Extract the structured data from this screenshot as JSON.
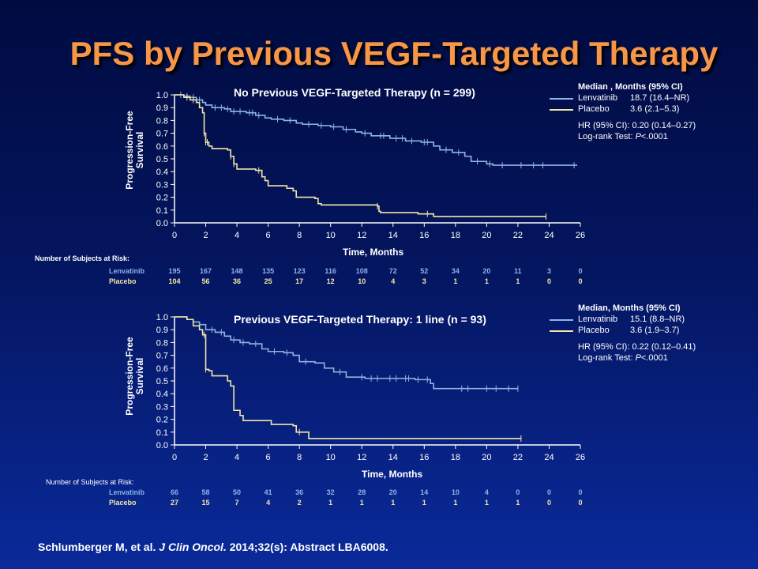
{
  "slide_title": "PFS by Previous VEGF-Targeted Therapy",
  "citation": {
    "authors": "Schlumberger M, et al.",
    "journal": "J Clin Oncol.",
    "rest": "2014;32(s): Abstract LBA6008."
  },
  "colors": {
    "title": "#f79646",
    "lenvatinib": "#8db4e2",
    "placebo": "#f2e6a6",
    "axis": "#ffffff"
  },
  "chart_data": [
    {
      "type": "line",
      "title": "No Previous VEGF-Targeted Therapy (n = 299)",
      "xlabel": "Time, Months",
      "ylabel_line1": "Progression-Free",
      "ylabel_line2": "Survival",
      "xlim": [
        0,
        26
      ],
      "ylim": [
        0,
        1.0
      ],
      "x_ticks": [
        "0",
        "2",
        "4",
        "6",
        "8",
        "10",
        "12",
        "14",
        "16",
        "18",
        "20",
        "22",
        "24",
        "26"
      ],
      "y_ticks": [
        "0.0",
        "0.1",
        "0.2",
        "0.3",
        "0.4",
        "0.5",
        "0.6",
        "0.7",
        "0.8",
        "0.9",
        "1.0"
      ],
      "legend": {
        "header": "Median , Months (95% CI)",
        "rows": [
          {
            "name": "Lenvatinib",
            "value": "18.7 (16.4–NR)"
          },
          {
            "name": "Placebo",
            "value": "3.6 (2.1–5.3)"
          }
        ],
        "hr": "HR (95% CI): 0.20 (0.14–0.27)",
        "logrank_prefix": "Log-rank Test: ",
        "logrank_p": "P",
        "logrank_value": "<.0001"
      },
      "series": [
        {
          "name": "Lenvatinib",
          "points": [
            [
              0,
              1.0
            ],
            [
              0.6,
              0.99
            ],
            [
              1.0,
              0.98
            ],
            [
              1.4,
              0.96
            ],
            [
              1.8,
              0.94
            ],
            [
              2.0,
              0.92
            ],
            [
              2.4,
              0.9
            ],
            [
              3.2,
              0.89
            ],
            [
              3.6,
              0.87
            ],
            [
              4.6,
              0.86
            ],
            [
              5.2,
              0.84
            ],
            [
              5.8,
              0.82
            ],
            [
              6.2,
              0.81
            ],
            [
              7.0,
              0.8
            ],
            [
              7.8,
              0.78
            ],
            [
              8.2,
              0.77
            ],
            [
              9.2,
              0.76
            ],
            [
              10.0,
              0.75
            ],
            [
              10.8,
              0.73
            ],
            [
              11.6,
              0.71
            ],
            [
              12.0,
              0.7
            ],
            [
              12.6,
              0.68
            ],
            [
              13.8,
              0.66
            ],
            [
              14.8,
              0.64
            ],
            [
              15.8,
              0.63
            ],
            [
              16.6,
              0.6
            ],
            [
              17.0,
              0.57
            ],
            [
              17.8,
              0.55
            ],
            [
              18.6,
              0.52
            ],
            [
              19.0,
              0.48
            ],
            [
              20.0,
              0.46
            ],
            [
              20.4,
              0.45
            ],
            [
              25.8,
              0.45
            ]
          ],
          "censor_x": [
            0.4,
            0.8,
            1.2,
            1.6,
            2.6,
            3.0,
            3.4,
            3.8,
            4.2,
            4.8,
            5.0,
            5.4,
            6.6,
            7.4,
            8.6,
            9.4,
            10.2,
            11.0,
            12.2,
            13.2,
            13.4,
            14.2,
            14.6,
            15.2,
            16.0,
            16.2,
            17.4,
            18.2,
            19.4,
            20.2,
            21.0,
            22.2,
            23.0,
            23.6,
            25.6
          ]
        },
        {
          "name": "Placebo",
          "points": [
            [
              0,
              1.0
            ],
            [
              0.6,
              0.98
            ],
            [
              1.0,
              0.96
            ],
            [
              1.4,
              0.94
            ],
            [
              1.6,
              0.9
            ],
            [
              1.8,
              0.86
            ],
            [
              1.9,
              0.7
            ],
            [
              2.0,
              0.63
            ],
            [
              2.2,
              0.6
            ],
            [
              2.4,
              0.58
            ],
            [
              3.4,
              0.57
            ],
            [
              3.6,
              0.52
            ],
            [
              3.8,
              0.46
            ],
            [
              4.0,
              0.42
            ],
            [
              5.2,
              0.41
            ],
            [
              5.6,
              0.36
            ],
            [
              5.8,
              0.33
            ],
            [
              6.0,
              0.29
            ],
            [
              7.2,
              0.27
            ],
            [
              7.6,
              0.25
            ],
            [
              7.8,
              0.2
            ],
            [
              9.0,
              0.19
            ],
            [
              9.2,
              0.15
            ],
            [
              9.4,
              0.14
            ],
            [
              13.0,
              0.13
            ],
            [
              13.1,
              0.09
            ],
            [
              13.2,
              0.08
            ],
            [
              15.6,
              0.07
            ],
            [
              16.6,
              0.05
            ],
            [
              23.8,
              0.05
            ]
          ],
          "censor_x": [
            0.8,
            1.2,
            1.9,
            2.0,
            2.1,
            3.6,
            3.8,
            5.4,
            13.0,
            16.2,
            23.8
          ]
        }
      ],
      "risk_table": {
        "header": "Number of Subjects at Risk:",
        "rows": [
          {
            "label": "Lenvatinib",
            "values": [
              "195",
              "167",
              "148",
              "135",
              "123",
              "116",
              "108",
              "72",
              "52",
              "34",
              "20",
              "11",
              "3",
              "0"
            ]
          },
          {
            "label": "Placebo",
            "values": [
              "104",
              "56",
              "36",
              "25",
              "17",
              "12",
              "10",
              "4",
              "3",
              "1",
              "1",
              "1",
              "0",
              "0"
            ]
          }
        ]
      }
    },
    {
      "type": "line",
      "title": "Previous VEGF-Targeted Therapy: 1 line (n = 93)",
      "xlabel": "Time, Months",
      "ylabel_line1": "Progression-Free",
      "ylabel_line2": "Survival",
      "xlim": [
        0,
        26
      ],
      "ylim": [
        0,
        1.0
      ],
      "x_ticks": [
        "0",
        "2",
        "4",
        "6",
        "8",
        "10",
        "12",
        "14",
        "16",
        "18",
        "20",
        "22",
        "24",
        "26"
      ],
      "y_ticks": [
        "0.0",
        "0.1",
        "0.2",
        "0.3",
        "0.4",
        "0.5",
        "0.6",
        "0.7",
        "0.8",
        "0.9",
        "1.0"
      ],
      "legend": {
        "header": "Median, Months (95% CI)",
        "rows": [
          {
            "name": "Lenvatinib",
            "value": "15.1 (8.8–NR)"
          },
          {
            "name": "Placebo",
            "value": "3.6 (1.9–3.7)"
          }
        ],
        "hr": "HR (95% CI): 0.22 (0.12–0.41)",
        "logrank_prefix": "Log-rank Test: ",
        "logrank_p": "P",
        "logrank_value": "<.0001"
      },
      "series": [
        {
          "name": "Lenvatinib",
          "points": [
            [
              0,
              1.0
            ],
            [
              0.8,
              0.98
            ],
            [
              1.2,
              0.96
            ],
            [
              1.6,
              0.94
            ],
            [
              2.0,
              0.9
            ],
            [
              2.6,
              0.88
            ],
            [
              3.2,
              0.85
            ],
            [
              3.6,
              0.82
            ],
            [
              4.2,
              0.8
            ],
            [
              4.8,
              0.79
            ],
            [
              5.6,
              0.75
            ],
            [
              6.0,
              0.73
            ],
            [
              7.0,
              0.72
            ],
            [
              7.6,
              0.7
            ],
            [
              8.0,
              0.65
            ],
            [
              9.0,
              0.64
            ],
            [
              9.6,
              0.6
            ],
            [
              10.2,
              0.57
            ],
            [
              11.0,
              0.53
            ],
            [
              12.2,
              0.52
            ],
            [
              15.4,
              0.51
            ],
            [
              16.4,
              0.48
            ],
            [
              16.6,
              0.44
            ],
            [
              22.0,
              0.44
            ]
          ],
          "censor_x": [
            1.6,
            2.4,
            3.0,
            3.8,
            4.4,
            5.2,
            6.4,
            7.2,
            8.4,
            10.6,
            12.0,
            12.6,
            13.0,
            13.8,
            14.2,
            14.8,
            15.0,
            15.6,
            16.2,
            18.4,
            18.8,
            20.0,
            20.6,
            21.4,
            22.0
          ]
        },
        {
          "name": "Placebo",
          "points": [
            [
              0,
              1.0
            ],
            [
              0.8,
              0.98
            ],
            [
              1.2,
              0.93
            ],
            [
              1.6,
              0.9
            ],
            [
              1.8,
              0.86
            ],
            [
              2.0,
              0.59
            ],
            [
              2.2,
              0.58
            ],
            [
              2.4,
              0.54
            ],
            [
              3.4,
              0.5
            ],
            [
              3.6,
              0.46
            ],
            [
              3.8,
              0.27
            ],
            [
              4.2,
              0.23
            ],
            [
              4.4,
              0.19
            ],
            [
              6.0,
              0.19
            ],
            [
              6.2,
              0.16
            ],
            [
              7.6,
              0.15
            ],
            [
              7.8,
              0.1
            ],
            [
              8.6,
              0.05
            ],
            [
              22.2,
              0.05
            ]
          ],
          "censor_x": [
            1.9,
            2.0,
            8.0,
            22.2
          ]
        }
      ],
      "risk_table": {
        "header": "Number of Subjects at Risk:",
        "rows": [
          {
            "label": "Lenvatinib",
            "values": [
              "66",
              "58",
              "50",
              "41",
              "36",
              "32",
              "28",
              "20",
              "14",
              "10",
              "4",
              "0",
              "0",
              "0"
            ]
          },
          {
            "label": "Placebo",
            "values": [
              "27",
              "15",
              "7",
              "4",
              "2",
              "1",
              "1",
              "1",
              "1",
              "1",
              "1",
              "1",
              "0",
              "0"
            ]
          }
        ]
      }
    }
  ]
}
